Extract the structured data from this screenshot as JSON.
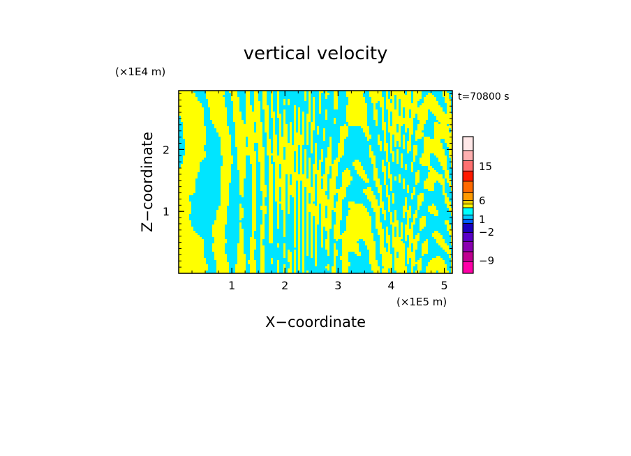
{
  "chart_data": {
    "type": "heatmap",
    "title": "vertical velocity",
    "time_label": "t=70800 s",
    "xlabel": "X−coordinate",
    "ylabel": "Z−coordinate",
    "x_unit": "(×1E5 m)",
    "y_unit": "(×1E4 m)",
    "xlim": [
      0,
      5.15
    ],
    "ylim": [
      0,
      2.95
    ],
    "x_ticks": [
      "1",
      "2",
      "3",
      "4",
      "5"
    ],
    "y_ticks": [
      "1",
      "2"
    ],
    "field_colors": {
      "positive": "#ffff00",
      "negative": "#00e5ff"
    },
    "colorbar": {
      "levels": [
        {
          "color": "#ff00a8"
        },
        {
          "color": "#c00090"
        },
        {
          "color": "#8a00b0"
        },
        {
          "color": "#5a00c8"
        },
        {
          "color": "#1a00c0"
        },
        {
          "color": "#0060ff"
        },
        {
          "color": "#00c8ff"
        },
        {
          "color": "#00ffff"
        },
        {
          "color": "#ffff00"
        },
        {
          "color": "#f0d000"
        },
        {
          "color": "#ff9a00"
        },
        {
          "color": "#ff6a00"
        },
        {
          "color": "#ff1a00"
        },
        {
          "color": "#ff7070"
        },
        {
          "color": "#ffb0b0"
        },
        {
          "color": "#ffe8e8"
        }
      ],
      "labels": [
        "15",
        "6",
        "1",
        "−2",
        "−9"
      ]
    }
  }
}
